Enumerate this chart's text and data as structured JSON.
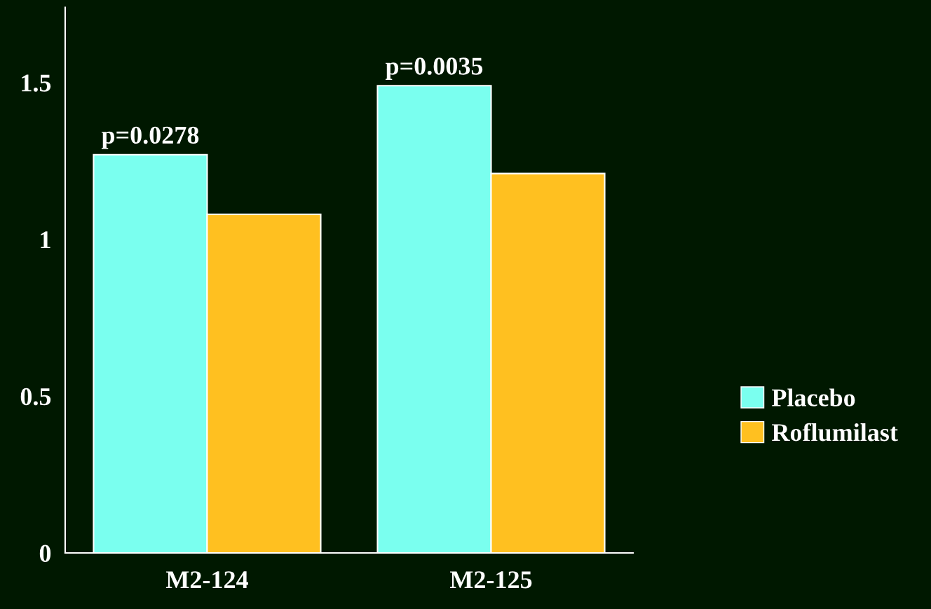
{
  "chart_data": {
    "type": "bar",
    "categories": [
      "M2-124",
      "M2-125"
    ],
    "series": [
      {
        "name": "Placebo",
        "color": "#7affef",
        "values": [
          1.27,
          1.49
        ]
      },
      {
        "name": "Roflumilast",
        "color": "#ffc020",
        "values": [
          1.08,
          1.21
        ]
      }
    ],
    "ylim": [
      0,
      1.74
    ],
    "yticks": [
      0,
      0.5,
      1,
      1.5
    ],
    "annotations": [
      {
        "text": "p=0.0278",
        "x": "M2-124",
        "y": 1.27
      },
      {
        "text": "p=0.0035",
        "x": "M2-125",
        "y": 1.49
      }
    ],
    "legend": "right",
    "grid": false
  }
}
